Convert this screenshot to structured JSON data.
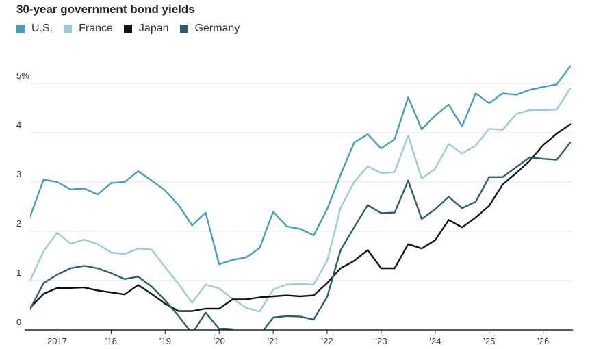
{
  "chart_data": {
    "type": "line",
    "title": "30-year government bond yields",
    "xlabel": "",
    "ylabel": "",
    "x_range": [
      2016.5,
      2026.55
    ],
    "ylim": [
      0,
      5.6
    ],
    "y_ticks": [
      {
        "value": 0,
        "label": "0"
      },
      {
        "value": 1,
        "label": "1"
      },
      {
        "value": 2,
        "label": "2"
      },
      {
        "value": 3,
        "label": "3"
      },
      {
        "value": 4,
        "label": "4"
      },
      {
        "value": 5,
        "label": "5%"
      }
    ],
    "x_ticks": [
      {
        "value": 2017,
        "label": "2017"
      },
      {
        "value": 2018,
        "label": "’18"
      },
      {
        "value": 2019,
        "label": "’19"
      },
      {
        "value": 2020,
        "label": "’20"
      },
      {
        "value": 2021,
        "label": "’21"
      },
      {
        "value": 2022,
        "label": "’22"
      },
      {
        "value": 2023,
        "label": "’23"
      },
      {
        "value": 2024,
        "label": "’24"
      },
      {
        "value": 2025,
        "label": "’25"
      },
      {
        "value": 2026,
        "label": "’26"
      }
    ],
    "grid": true,
    "legend_position": "top-left",
    "x": [
      2016.5,
      2016.75,
      2017.0,
      2017.25,
      2017.5,
      2017.75,
      2018.0,
      2018.25,
      2018.5,
      2018.75,
      2019.0,
      2019.25,
      2019.5,
      2019.75,
      2020.0,
      2020.25,
      2020.5,
      2020.75,
      2021.0,
      2021.25,
      2021.5,
      2021.75,
      2022.0,
      2022.25,
      2022.5,
      2022.75,
      2023.0,
      2023.25,
      2023.5,
      2023.75,
      2024.0,
      2024.25,
      2024.5,
      2024.75,
      2025.0,
      2025.25,
      2025.5,
      2025.75,
      2026.0,
      2026.25,
      2026.5
    ],
    "series": [
      {
        "name": "U.S.",
        "color": "#4a9db8",
        "values": [
          2.3,
          3.05,
          3.0,
          2.85,
          2.87,
          2.75,
          2.98,
          3.0,
          3.22,
          3.03,
          2.83,
          2.53,
          2.12,
          2.38,
          1.33,
          1.42,
          1.47,
          1.66,
          2.4,
          2.1,
          2.05,
          1.92,
          2.45,
          3.15,
          3.8,
          3.97,
          3.68,
          3.87,
          4.72,
          4.07,
          4.35,
          4.57,
          4.13,
          4.8,
          4.6,
          4.8,
          4.77,
          4.87,
          4.93,
          4.98,
          5.35
        ]
      },
      {
        "name": "France",
        "color": "#9ccbd8",
        "values": [
          1.0,
          1.6,
          1.97,
          1.75,
          1.83,
          1.74,
          1.57,
          1.54,
          1.65,
          1.63,
          1.27,
          0.93,
          0.55,
          0.92,
          0.84,
          0.63,
          0.45,
          0.37,
          0.82,
          0.92,
          0.93,
          0.92,
          1.4,
          2.48,
          3.0,
          3.32,
          3.18,
          3.2,
          3.94,
          3.07,
          3.27,
          3.77,
          3.58,
          3.74,
          4.08,
          4.06,
          4.38,
          4.46,
          4.46,
          4.47,
          4.9
        ]
      },
      {
        "name": "Japan",
        "color": "#111111",
        "values": [
          0.45,
          0.73,
          0.85,
          0.85,
          0.86,
          0.8,
          0.76,
          0.72,
          0.91,
          0.73,
          0.53,
          0.38,
          0.38,
          0.43,
          0.43,
          0.62,
          0.62,
          0.66,
          0.68,
          0.7,
          0.68,
          0.7,
          0.95,
          1.25,
          1.4,
          1.62,
          1.25,
          1.25,
          1.74,
          1.65,
          1.82,
          2.23,
          2.08,
          2.28,
          2.52,
          2.95,
          3.18,
          3.43,
          3.75,
          3.98,
          4.17
        ]
      },
      {
        "name": "Germany",
        "color": "#2b5f6b",
        "values": [
          0.42,
          0.95,
          1.12,
          1.25,
          1.3,
          1.25,
          1.15,
          1.03,
          1.08,
          0.88,
          0.6,
          0.28,
          -0.08,
          0.35,
          0.02,
          0.0,
          -0.18,
          -0.12,
          0.25,
          0.28,
          0.27,
          0.21,
          0.67,
          1.62,
          2.08,
          2.53,
          2.37,
          2.38,
          3.03,
          2.25,
          2.45,
          2.7,
          2.47,
          2.6,
          3.1,
          3.1,
          3.3,
          3.5,
          3.47,
          3.45,
          3.8
        ]
      }
    ]
  }
}
